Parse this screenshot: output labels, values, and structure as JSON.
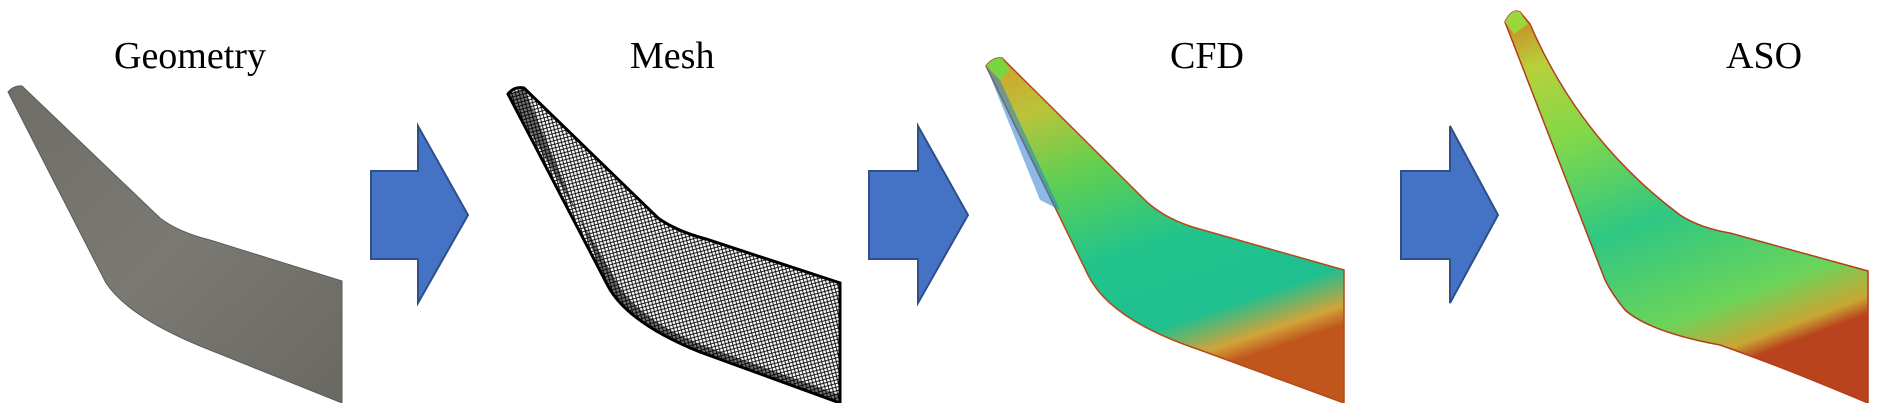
{
  "diagram": {
    "panels": [
      {
        "id": "geometry",
        "title": "Geometry"
      },
      {
        "id": "mesh",
        "title": "Mesh"
      },
      {
        "id": "cfd",
        "title": "CFD"
      },
      {
        "id": "aso",
        "title": "ASO"
      }
    ],
    "arrow_color": "#4472C4",
    "arrow_border": "#2F4E8A",
    "geometry_color": "#75726C"
  }
}
